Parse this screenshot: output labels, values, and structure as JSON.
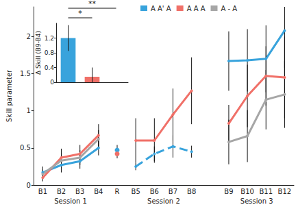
{
  "chart_data": [
    {
      "type": "line",
      "y_label": "Skill parameter",
      "categories": [
        "B1",
        "B2",
        "B3",
        "B4",
        "R",
        "B5",
        "B6",
        "B7",
        "B8",
        null,
        "B9",
        "B10",
        "B11",
        "B12"
      ],
      "groups": [
        {
          "label": "Session 1",
          "categories": [
            "B1",
            "B2",
            "B3",
            "B4"
          ]
        },
        {
          "label": "Session 2",
          "categories": [
            "B5",
            "B6",
            "B7",
            "B8"
          ]
        },
        {
          "label": "Session 3",
          "categories": [
            "B9",
            "B10",
            "B11",
            "B12"
          ]
        }
      ],
      "series": [
        {
          "name": "A A' A",
          "color": "#38a3dc",
          "marker": "circle",
          "line_style": [
            "solid",
            "dashed",
            "solid"
          ],
          "values": [
            0.17,
            0.27,
            0.32,
            0.5,
            0.47,
            0.25,
            0.42,
            0.52,
            0.45,
            null,
            1.67,
            1.68,
            1.7,
            2.08
          ],
          "errors": [
            0.08,
            0.1,
            0.1,
            0.1,
            0.07,
            0.05,
            0.1,
            0.15,
            0.08,
            null,
            0.4,
            0.42,
            0.45,
            0.5
          ]
        },
        {
          "name": "A A A",
          "color": "#f07068",
          "marker": "circle",
          "line_style": "solid",
          "values": [
            0.1,
            0.37,
            0.42,
            0.67,
            0.42,
            0.6,
            0.6,
            0.95,
            1.27,
            null,
            0.83,
            1.2,
            1.47,
            1.45
          ],
          "errors": [
            0.05,
            0.12,
            0.12,
            0.15,
            0.06,
            0.3,
            0.3,
            0.35,
            0.45,
            null,
            0.25,
            0.42,
            0.4,
            0.55
          ]
        },
        {
          "name": "A - A",
          "color": "#a6a6a6",
          "marker": "circle",
          "line_style": "solid",
          "values": [
            0.15,
            0.33,
            0.37,
            0.62,
            null,
            null,
            null,
            null,
            null,
            null,
            0.58,
            0.66,
            1.15,
            1.22
          ],
          "errors": [
            0.06,
            0.1,
            0.1,
            0.12,
            null,
            null,
            null,
            null,
            null,
            null,
            0.3,
            0.35,
            0.4,
            0.45
          ]
        }
      ],
      "ylim": [
        0,
        2.4
      ],
      "yticks": [
        0,
        0.5,
        1,
        1.5,
        2
      ],
      "grid": false,
      "legend": "upper center"
    },
    {
      "type": "bar",
      "y_label": "Δ Skill (B9-B4)",
      "categories": [
        "A A' A",
        "A A A",
        "A - A"
      ],
      "values": [
        1.2,
        0.15,
        0
      ],
      "errors": [
        0.35,
        0.25,
        0
      ],
      "colors": [
        "#38a3dc",
        "#f07068",
        "#a6a6a6"
      ],
      "ylim": [
        0,
        1.6
      ],
      "yticks": [
        0,
        0.4,
        0.8,
        1.2
      ],
      "tick_labels": "y",
      "annotations": [
        {
          "from": "A A' A",
          "to": "A A A",
          "text": "*"
        },
        {
          "from": "A A' A",
          "to": "A - A",
          "text": "**"
        }
      ]
    }
  ]
}
